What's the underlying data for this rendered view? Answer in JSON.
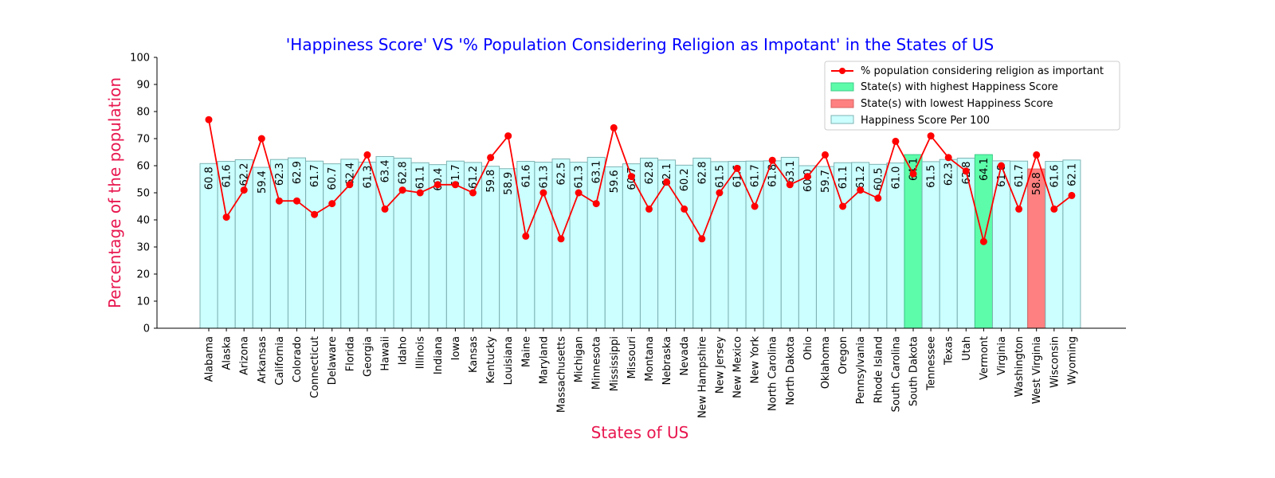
{
  "chart_data": {
    "type": "bar",
    "title": "'Happiness Score'  VS  '% Population Considering Religion as Impotant' in the States of US",
    "xlabel": "States of US",
    "ylabel": "Percentage of the population",
    "ylim": [
      0,
      100
    ],
    "yticks": [
      "0",
      "10",
      "20",
      "30",
      "40",
      "50",
      "60",
      "70",
      "80",
      "90",
      "100"
    ],
    "categories": [
      "Alabama",
      "Alaska",
      "Arizona",
      "Arkansas",
      "California",
      "Colorado",
      "Connecticut",
      "Delaware",
      "Florida",
      "Georgia",
      "Hawaii",
      "Idaho",
      "Illinois",
      "Indiana",
      "Iowa",
      "Kansas",
      "Kentucky",
      "Louisiana",
      "Maine",
      "Maryland",
      "Massachusetts",
      "Michigan",
      "Minnesota",
      "Mississippi",
      "Missouri",
      "Montana",
      "Nebraska",
      "Nevada",
      "New Hampshire",
      "New Jersey",
      "New Mexico",
      "New York",
      "North Carolina",
      "North Dakota",
      "Ohio",
      "Oklahoma",
      "Oregon",
      "Pennsylvania",
      "Rhode Island",
      "South Carolina",
      "South Dakota",
      "Tennessee",
      "Texas",
      "Utah",
      "Vermont",
      "Virginia",
      "Washington",
      "West Virginia",
      "Wisconsin",
      "Wyoming"
    ],
    "series": [
      {
        "name": "Happiness Score Per 100",
        "kind": "bar",
        "color": "#ccffff",
        "edge_color": "#7fb3b3",
        "values": [
          60.8,
          61.6,
          62.2,
          59.4,
          62.3,
          62.9,
          61.7,
          60.7,
          62.4,
          61.3,
          63.4,
          62.8,
          61.1,
          60.4,
          61.7,
          61.2,
          59.8,
          58.9,
          61.6,
          61.3,
          62.5,
          61.3,
          63.1,
          59.6,
          60.7,
          62.8,
          62.1,
          60.2,
          62.8,
          61.5,
          61.6,
          61.7,
          61.8,
          63.1,
          60.0,
          59.7,
          61.1,
          61.2,
          60.5,
          61.0,
          64.1,
          61.5,
          62.3,
          62.8,
          64.1,
          61.8,
          61.7,
          58.8,
          61.6,
          62.1
        ],
        "labels": [
          "60.8",
          "61.6",
          "62.2",
          "59.4",
          "62.3",
          "62.9",
          "61.7",
          "60.7",
          "62.4",
          "61.3",
          "63.4",
          "62.8",
          "61.1",
          "60.4",
          "61.7",
          "61.2",
          "59.8",
          "58.9",
          "61.6",
          "61.3",
          "62.5",
          "61.3",
          "63.1",
          "59.6",
          "60.7",
          "62.8",
          "62.1",
          "60.2",
          "62.8",
          "61.5",
          "61.6",
          "61.7",
          "61.8",
          "63.1",
          "60.0",
          "59.7",
          "61.1",
          "61.2",
          "60.5",
          "61.0",
          "64.1",
          "61.5",
          "62.3",
          "62.8",
          "64.1",
          "61.8",
          "61.7",
          "58.8",
          "61.6",
          "62.1"
        ]
      },
      {
        "name": "% population considering religion as important",
        "kind": "line",
        "color": "#ff0000",
        "values": [
          77,
          41,
          51,
          70,
          47,
          47,
          42,
          46,
          53,
          64,
          44,
          51,
          50,
          53,
          53,
          50,
          63,
          71,
          34,
          50,
          33,
          50,
          46,
          74,
          56,
          44,
          54,
          44,
          33,
          50,
          59,
          45,
          62,
          53,
          56,
          64,
          45,
          51,
          48,
          69,
          57,
          71,
          63,
          58,
          32,
          60,
          44,
          64,
          44,
          49
        ]
      }
    ],
    "highlights": {
      "highest": {
        "name": "State(s) with highest Happiness Score",
        "color": "#5dfcaa",
        "categories": [
          "South Dakota",
          "Vermont"
        ]
      },
      "lowest": {
        "name": "State(s) with lowest Happiness Score",
        "color": "#ff8080",
        "categories": [
          "West Virginia"
        ]
      }
    },
    "legend": {
      "placement": "top-right"
    },
    "colors": {
      "title": "#0000ff",
      "axis_label": "#e8174f"
    },
    "grid": false
  }
}
